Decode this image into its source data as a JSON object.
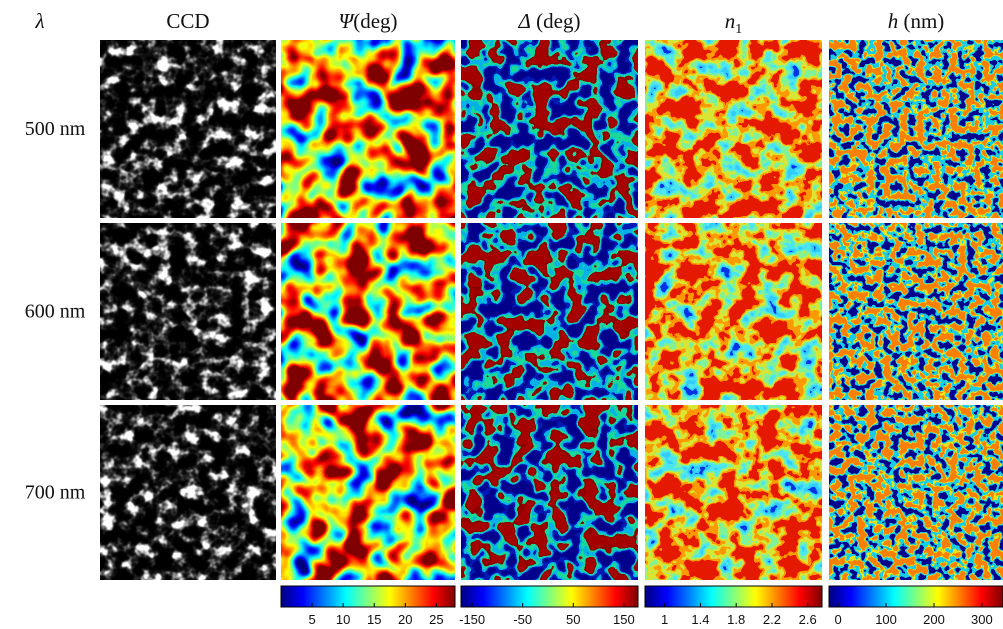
{
  "header": {
    "wavelength_symbol": "λ",
    "columns": [
      {
        "symbol": "",
        "unit": "CCD"
      },
      {
        "symbol": "Ψ",
        "unit": "(deg)"
      },
      {
        "symbol": "Δ",
        "unit": " (deg)"
      },
      {
        "symbol": "n",
        "subscript": "1"
      },
      {
        "symbol": "h",
        "unit": " (nm)"
      }
    ]
  },
  "rows": [
    "500 nm",
    "600 nm",
    "700 nm"
  ],
  "colorbars": [
    {
      "lim": [
        0,
        28
      ],
      "ticks": [
        5,
        10,
        15,
        20,
        25
      ]
    },
    {
      "lim": [
        -172,
        178
      ],
      "ticks": [
        -150,
        -50,
        50,
        150
      ]
    },
    {
      "lim": [
        0.78,
        2.76
      ],
      "ticks": [
        1,
        1.4,
        1.8,
        2.2,
        2.6
      ]
    },
    {
      "lim": [
        -19,
        344
      ],
      "ticks": [
        0,
        100,
        200,
        300
      ]
    }
  ]
}
